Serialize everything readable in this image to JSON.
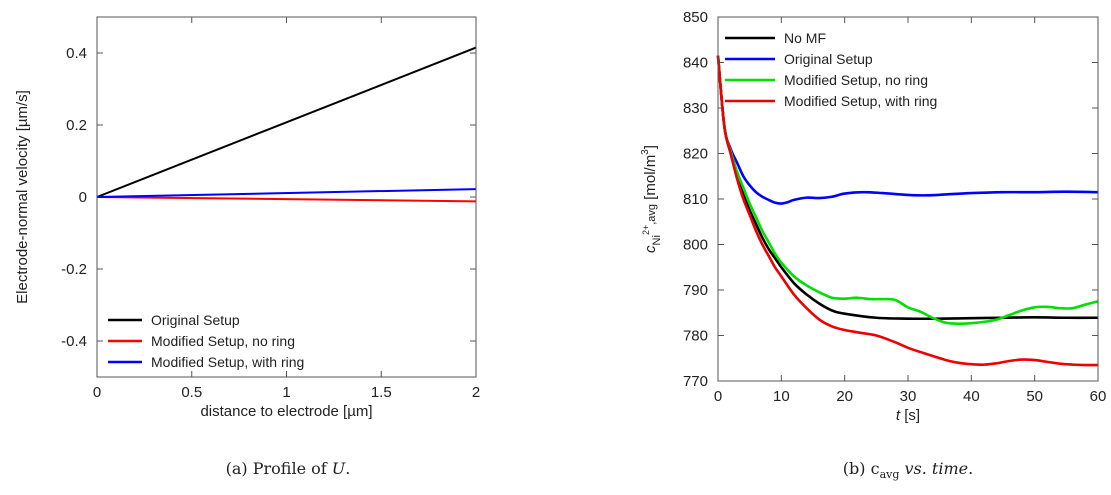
{
  "chart_data": [
    {
      "type": "line",
      "xlabel": "distance to electrode [µm]",
      "ylabel": "Electrode-normal velocity [µm/s]",
      "xlim": [
        0,
        2
      ],
      "ylim": [
        -0.5,
        0.5
      ],
      "xticks": [
        0,
        0.5,
        1,
        1.5,
        2
      ],
      "xtick_labels": [
        "0",
        "0.5",
        "1",
        "1.5",
        "2"
      ],
      "yticks": [
        -0.4,
        -0.2,
        0,
        0.2,
        0.4
      ],
      "ytick_labels": [
        "-0.4",
        "-0.2",
        "0",
        "0.2",
        "0.4"
      ],
      "grid": false,
      "legend_position": "bottom-left",
      "series": [
        {
          "name": "Original Setup",
          "color": "#000000",
          "x": [
            0,
            2
          ],
          "y": [
            0,
            0.415
          ]
        },
        {
          "name": "Modified Setup, no ring",
          "color": "#ff0000",
          "x": [
            0,
            2
          ],
          "y": [
            0,
            -0.012
          ]
        },
        {
          "name": "Modified Setup, with ring",
          "color": "#0000ff",
          "x": [
            0,
            2
          ],
          "y": [
            0,
            0.022
          ]
        }
      ],
      "caption": "(a) Profile of U."
    },
    {
      "type": "line",
      "xlabel": "t [s]",
      "ylabel": "c_{Ni2+,avg} [mol/m3]",
      "xlim": [
        0,
        60
      ],
      "ylim": [
        770,
        850
      ],
      "xticks": [
        0,
        10,
        20,
        30,
        40,
        50,
        60
      ],
      "xtick_labels": [
        "0",
        "10",
        "20",
        "30",
        "40",
        "50",
        "60"
      ],
      "yticks": [
        770,
        780,
        790,
        800,
        810,
        820,
        830,
        840,
        850
      ],
      "ytick_labels": [
        "770",
        "780",
        "790",
        "800",
        "810",
        "820",
        "830",
        "840",
        "850"
      ],
      "grid": false,
      "legend_position": "top-left",
      "series": [
        {
          "name": "No MF",
          "color": "#000000",
          "x": [
            0,
            1,
            2,
            3,
            4,
            5,
            6,
            7,
            8,
            9,
            10,
            12,
            14,
            16,
            18,
            20,
            25,
            30,
            35,
            40,
            45,
            50,
            55,
            60
          ],
          "y": [
            841.5,
            826,
            820,
            815,
            811,
            807.5,
            804.5,
            801.5,
            799,
            797,
            795,
            791.5,
            789,
            787,
            785.5,
            784.8,
            783.9,
            783.7,
            783.7,
            783.8,
            783.9,
            784,
            783.9,
            783.9
          ]
        },
        {
          "name": "Original Setup",
          "color": "#0000ff",
          "x": [
            0,
            1,
            2,
            3,
            4,
            5,
            6,
            7,
            8,
            9,
            10,
            11,
            12,
            14,
            16,
            18,
            20,
            23,
            26,
            30,
            33,
            36,
            40,
            45,
            50,
            55,
            60
          ],
          "y": [
            841.5,
            826,
            821,
            818,
            815,
            813,
            811.5,
            810.5,
            809.8,
            809.2,
            809.0,
            809.3,
            809.8,
            810.3,
            810.2,
            810.5,
            811.2,
            811.5,
            811.3,
            810.9,
            810.8,
            811.0,
            811.3,
            811.5,
            811.5,
            811.6,
            811.5
          ]
        },
        {
          "name": "Modified Setup, no ring",
          "color": "#00e000",
          "x": [
            0,
            1,
            2,
            3,
            4,
            5,
            6,
            7,
            8,
            9,
            10,
            12,
            14,
            16,
            18,
            20,
            22,
            24,
            26,
            28,
            30,
            32,
            34,
            36,
            38,
            40,
            42,
            44,
            46,
            48,
            50,
            52,
            54,
            56,
            58,
            60
          ],
          "y": [
            841.5,
            826,
            820.5,
            816,
            812.5,
            809,
            806,
            803,
            800.5,
            798,
            796,
            793,
            791,
            789.5,
            788.3,
            788.1,
            788.3,
            788.0,
            788.0,
            787.8,
            786.2,
            785.2,
            783.8,
            782.8,
            782.6,
            782.7,
            783.0,
            783.5,
            784.5,
            785.5,
            786.2,
            786.3,
            786.0,
            786.0,
            786.8,
            787.5
          ]
        },
        {
          "name": "Modified Setup, with ring",
          "color": "#ee0000",
          "x": [
            0,
            1,
            2,
            3,
            4,
            5,
            6,
            7,
            8,
            9,
            10,
            12,
            14,
            16,
            18,
            20,
            22,
            25,
            28,
            30,
            33,
            36,
            38,
            40,
            42,
            44,
            46,
            48,
            50,
            52,
            54,
            56,
            58,
            60
          ],
          "y": [
            841.5,
            826,
            820,
            814.5,
            810,
            806.5,
            803,
            800,
            797.5,
            795,
            793,
            789,
            786,
            783.5,
            782,
            781.2,
            780.7,
            780.0,
            778.5,
            777.3,
            775.9,
            774.6,
            774.0,
            773.7,
            773.6,
            773.9,
            774.4,
            774.7,
            774.6,
            774.2,
            773.8,
            773.6,
            773.5,
            773.5
          ]
        }
      ],
      "caption": "(b) c_avg vs. time."
    }
  ]
}
